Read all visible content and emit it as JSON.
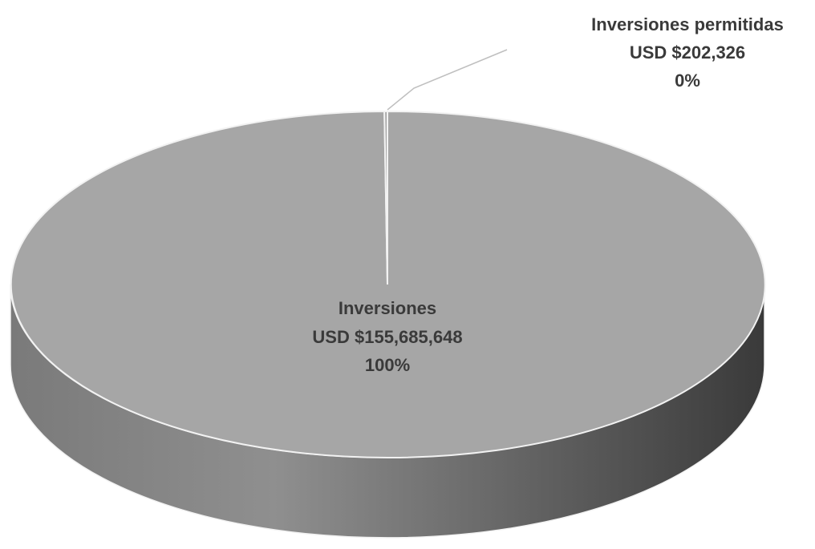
{
  "chart_data": {
    "type": "pie",
    "three_d": true,
    "title": "",
    "legend": "none",
    "slices": [
      {
        "category": "Inversiones",
        "value_label": "USD $155,685,648",
        "value": 155685648,
        "percent_label": "100%",
        "color": "#a6a6a6"
      },
      {
        "category": "Inversiones permitidas",
        "value_label": "USD $202,326",
        "value": 202326,
        "percent_label": "0%",
        "color": "#a6a6a6"
      }
    ],
    "colors": {
      "top": "#a6a6a6",
      "side_light": "#8a8a8a",
      "side_dark": "#404040",
      "edge": "#f2f2f2",
      "leader": "#bfbfbf",
      "label": "#3a3a3a"
    }
  }
}
